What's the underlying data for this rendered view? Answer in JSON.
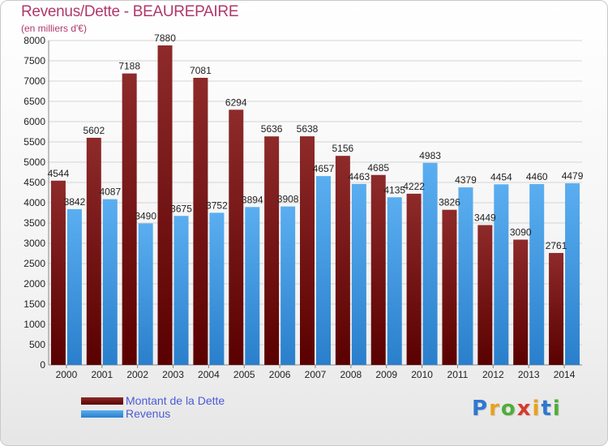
{
  "header": {
    "title": "Revenus/Dette - BEAUREPAIRE",
    "subtitle": "(en milliers d'€)"
  },
  "legend": {
    "items": [
      {
        "label": "Montant de la Dette",
        "color": "#7a0f0f"
      },
      {
        "label": "Revenus",
        "color": "#3d9ae8"
      }
    ]
  },
  "logo": {
    "text": "Proxiti",
    "letters": [
      {
        "ch": "P",
        "color": "#2f77d1"
      },
      {
        "ch": "r",
        "color": "#e9a21a"
      },
      {
        "ch": "o",
        "color": "#4fae3a"
      },
      {
        "ch": "x",
        "color": "#d8392b"
      },
      {
        "ch": "i",
        "color": "#e9a21a"
      },
      {
        "ch": "t",
        "color": "#2f77d1"
      },
      {
        "ch": "i",
        "color": "#4fae3a"
      }
    ]
  },
  "chart_data": {
    "type": "bar",
    "title": "Revenus/Dette - BEAUREPAIRE",
    "subtitle": "(en milliers d'€)",
    "categories": [
      "2000",
      "2001",
      "2002",
      "2003",
      "2004",
      "2005",
      "2006",
      "2007",
      "2008",
      "2009",
      "2010",
      "2011",
      "2012",
      "2013",
      "2014"
    ],
    "series": [
      {
        "name": "Montant de la Dette",
        "color": "#7a0f0f",
        "values": [
          4544,
          5602,
          7188,
          7880,
          7081,
          6294,
          5636,
          5638,
          5156,
          4685,
          4222,
          3826,
          3449,
          3090,
          2761
        ],
        "labels": [
          "4544",
          "5602",
          "7188",
          "7880",
          "7081",
          "6294",
          "5636",
          "5638",
          "5156",
          "4685",
          "4222",
          "3826",
          "3449",
          "3090",
          "2761"
        ]
      },
      {
        "name": "Revenus",
        "color": "#3d9ae8",
        "values": [
          3842,
          4087,
          3490,
          3675,
          3752,
          3894,
          3908,
          4657,
          4463,
          4135,
          4983,
          4379,
          4454,
          4460,
          4479
        ],
        "labels": [
          "3842",
          "4087",
          "3490",
          "3675",
          "3752",
          "3894",
          "3908",
          "4657",
          "4463",
          "4135",
          "4983",
          "4379",
          "4454",
          "4460",
          "4479"
        ]
      }
    ],
    "ylim": [
      0,
      8000
    ],
    "yticks": [
      "0",
      "500",
      "1000",
      "1500",
      "2000",
      "2500",
      "3000",
      "3500",
      "4000",
      "4500",
      "5000",
      "5500",
      "6000",
      "6500",
      "7000",
      "7500",
      "8000"
    ],
    "grid": true,
    "legend_position": "bottom-left"
  }
}
